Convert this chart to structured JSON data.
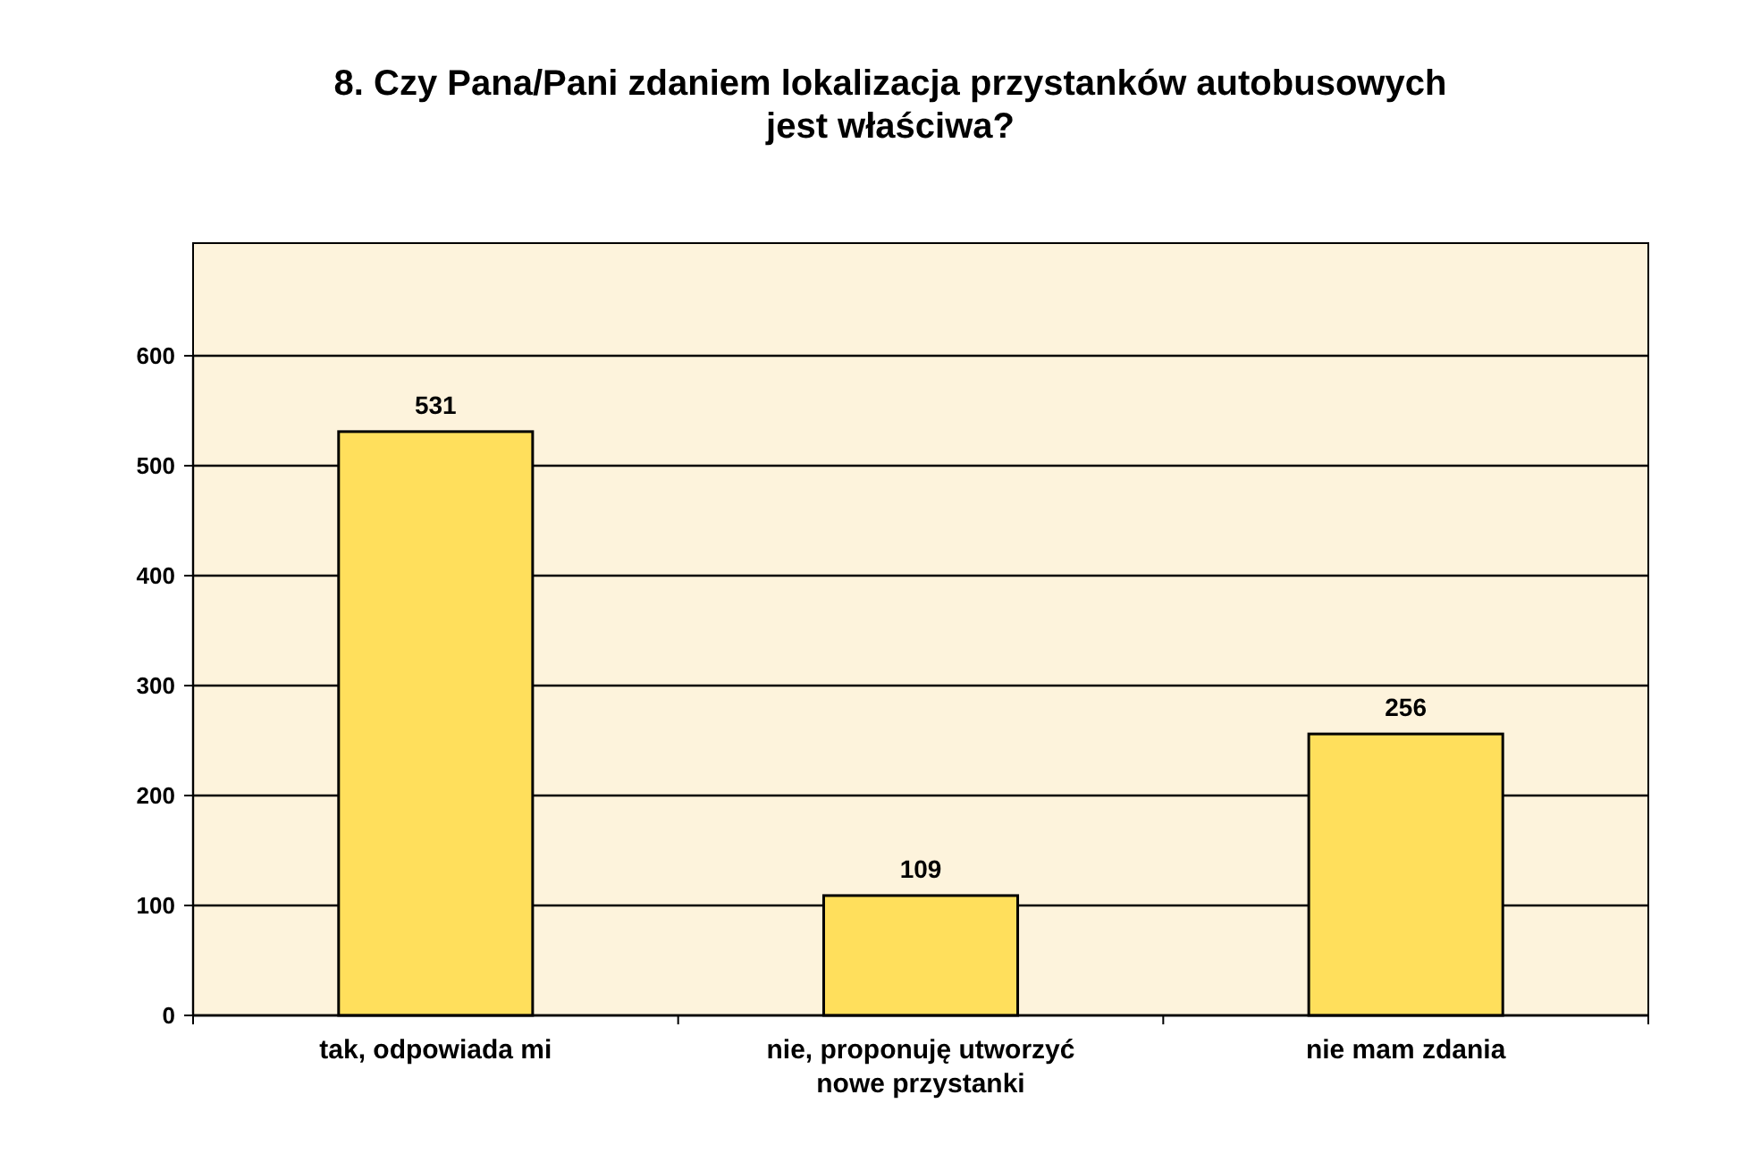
{
  "chart_data": {
    "type": "bar",
    "title": "8. Czy Pana/Pani zdaniem lokalizacja przystanków autobusowych jest właściwa?",
    "categories": [
      "tak, odpowiada mi",
      "nie, proponuję utworzyć nowe przystanki",
      "nie mam zdania"
    ],
    "values": [
      531,
      109,
      256
    ],
    "color": "#ffdf5c",
    "ylim": [
      0,
      600
    ],
    "yticks": [
      0,
      100,
      200,
      300,
      400,
      500,
      600
    ],
    "grid": "y",
    "data_labels": true
  }
}
